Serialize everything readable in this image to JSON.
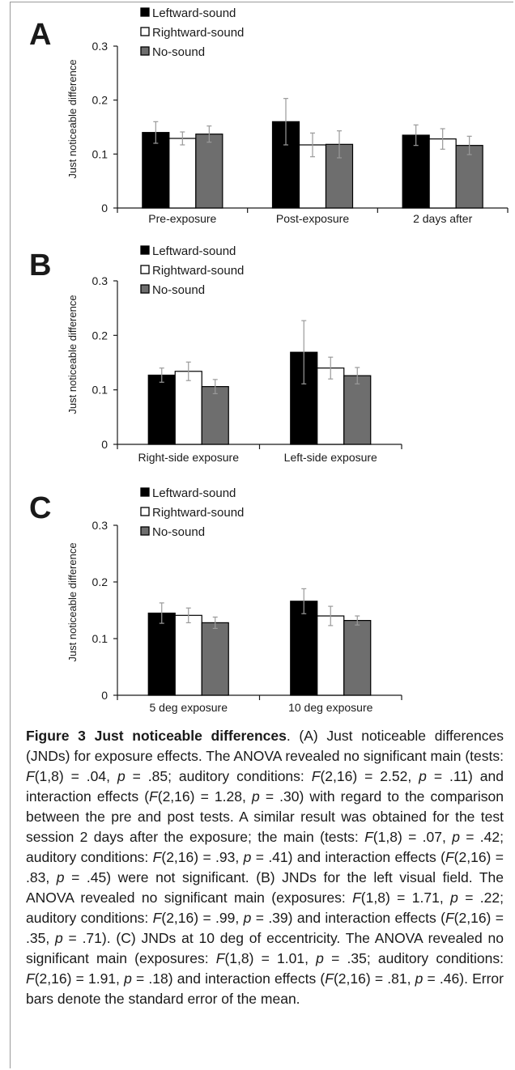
{
  "chart_data": [
    {
      "type": "bar",
      "panel_label": "A",
      "categories": [
        "Pre-exposure",
        "Post-exposure",
        "2 days after"
      ],
      "series": [
        {
          "name": "Leftward-sound",
          "values": [
            0.14,
            0.16,
            0.135
          ],
          "errors": [
            0.02,
            0.043,
            0.019
          ],
          "color": "#000000"
        },
        {
          "name": "Rightward-sound",
          "values": [
            0.129,
            0.117,
            0.128
          ],
          "errors": [
            0.012,
            0.022,
            0.019
          ],
          "color": "#ffffff"
        },
        {
          "name": "No-sound",
          "values": [
            0.137,
            0.118,
            0.116
          ],
          "errors": [
            0.015,
            0.025,
            0.017
          ],
          "color": "#6e6e6e"
        }
      ],
      "ylabel": "Just noticeable difference",
      "ylim": [
        0,
        0.3
      ],
      "yticks": [
        "0",
        "0.1",
        "0.2",
        "0.3"
      ],
      "legend": "top-left",
      "grid": false
    },
    {
      "type": "bar",
      "panel_label": "B",
      "categories": [
        "Right-side exposure",
        "Left-side exposure"
      ],
      "series": [
        {
          "name": "Leftward-sound",
          "values": [
            0.127,
            0.169
          ],
          "errors": [
            0.013,
            0.058
          ],
          "color": "#000000"
        },
        {
          "name": "Rightward-sound",
          "values": [
            0.134,
            0.14
          ],
          "errors": [
            0.017,
            0.02
          ],
          "color": "#ffffff"
        },
        {
          "name": "No-sound",
          "values": [
            0.106,
            0.126
          ],
          "errors": [
            0.013,
            0.015
          ],
          "color": "#6e6e6e"
        }
      ],
      "ylabel": "Just noticeable difference",
      "ylim": [
        0,
        0.3
      ],
      "yticks": [
        "0",
        "0.1",
        "0.2",
        "0.3"
      ],
      "legend": "top-left",
      "grid": false
    },
    {
      "type": "bar",
      "panel_label": "C",
      "categories": [
        "5 deg exposure",
        "10 deg exposure"
      ],
      "series": [
        {
          "name": "Leftward-sound",
          "values": [
            0.145,
            0.166
          ],
          "errors": [
            0.018,
            0.022
          ],
          "color": "#000000"
        },
        {
          "name": "Rightward-sound",
          "values": [
            0.141,
            0.14
          ],
          "errors": [
            0.013,
            0.017
          ],
          "color": "#ffffff"
        },
        {
          "name": "No-sound",
          "values": [
            0.128,
            0.132
          ],
          "errors": [
            0.01,
            0.008
          ],
          "color": "#6e6e6e"
        }
      ],
      "ylabel": "Just noticeable difference",
      "ylim": [
        0,
        0.3
      ],
      "yticks": [
        "0",
        "0.1",
        "0.2",
        "0.3"
      ],
      "legend": "top-left",
      "grid": false
    }
  ],
  "caption": {
    "label": "Figure 3",
    "title": "Just noticeable differences",
    "segments": [
      ". (A) Just noticeable differences (JNDs) for exposure effects. The ANOVA revealed no significant main (tests: ",
      {
        "i": "F"
      },
      "(1,8) = .04, ",
      {
        "i": "p"
      },
      " = .85; auditory conditions: ",
      {
        "i": "F"
      },
      "(2,16) = 2.52, ",
      {
        "i": "p"
      },
      " = .11) and interaction effects (",
      {
        "i": "F"
      },
      "(2,16) = 1.28, ",
      {
        "i": "p"
      },
      " = .30) with regard to the comparison between the pre and post tests. A similar result was obtained for the test session 2 days after the exposure; the main (tests: ",
      {
        "i": "F"
      },
      "(1,8) = .07, ",
      {
        "i": "p"
      },
      " = .42; auditory conditions: ",
      {
        "i": "F"
      },
      "(2,16) = .93, ",
      {
        "i": "p"
      },
      " = .41) and interaction effects (",
      {
        "i": "F"
      },
      "(2,16) = .83, ",
      {
        "i": "p"
      },
      " = .45) were not significant. (B) JNDs for the left visual field. The ANOVA revealed no significant main (exposures: ",
      {
        "i": "F"
      },
      "(1,8) = 1.71, ",
      {
        "i": "p"
      },
      " = .22; auditory conditions: ",
      {
        "i": "F"
      },
      "(2,16) = .99, ",
      {
        "i": "p"
      },
      " = .39) and interaction effects (",
      {
        "i": "F"
      },
      "(2,16) = .35, ",
      {
        "i": "p"
      },
      " = .71). (C) JNDs at 10 deg of eccentricity. The ANOVA revealed no significant main (exposures: ",
      {
        "i": "F"
      },
      "(1,8) = 1.01, ",
      {
        "i": "p"
      },
      " = .35; auditory conditions: ",
      {
        "i": "F"
      },
      "(2,16) = 1.91, ",
      {
        "i": "p"
      },
      " = .18) and interaction effects (",
      {
        "i": "F"
      },
      "(2,16) = .81, ",
      {
        "i": "p"
      },
      " = .46). Error bars denote the standard error of the mean."
    ]
  }
}
